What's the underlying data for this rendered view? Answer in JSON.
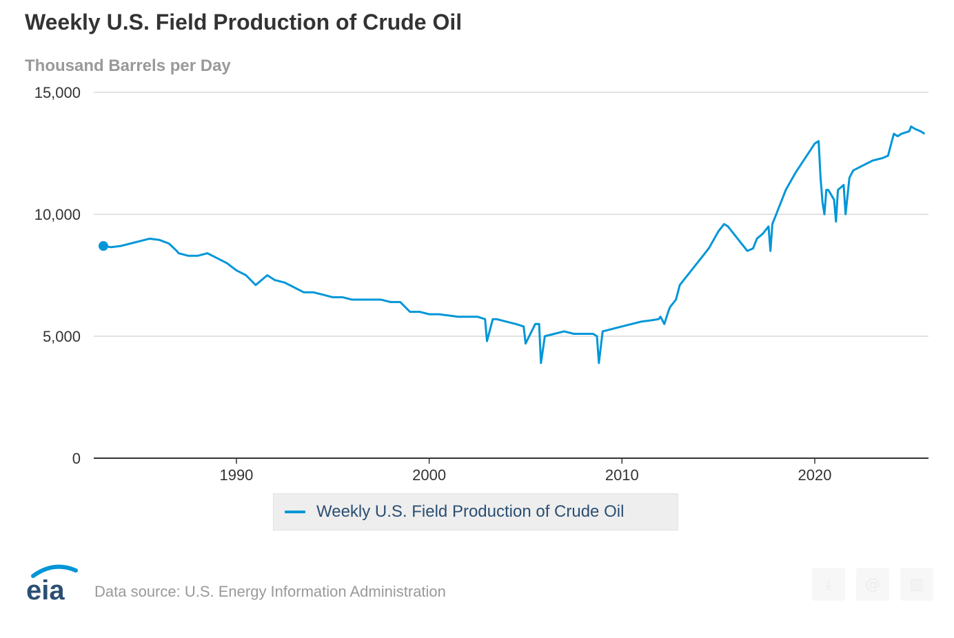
{
  "header": {
    "title": "Weekly U.S. Field Production of Crude Oil",
    "subtitle": "Thousand Barrels per Day"
  },
  "legend": {
    "label": "Weekly U.S. Field Production of Crude Oil"
  },
  "footer": {
    "logo_text": "eia",
    "source": "Data source: U.S. Energy Information Administration"
  },
  "toolbar": {
    "icons": [
      "download-icon",
      "share-icon",
      "embed-icon"
    ]
  },
  "colors": {
    "series": "#0096d7",
    "grid": "#d8d8d8",
    "axis": "#333333",
    "title": "#333333",
    "muted": "#999999"
  },
  "chart_data": {
    "type": "line",
    "title": "Weekly U.S. Field Production of Crude Oil",
    "ylabel": "Thousand Barrels per Day",
    "xlabel": "",
    "ylim": [
      0,
      15000
    ],
    "xlim": [
      1982.6,
      2025.9
    ],
    "y_ticks": [
      0,
      5000,
      10000,
      15000
    ],
    "y_tick_labels": [
      "0",
      "5,000",
      "10,000",
      "15,000"
    ],
    "x_ticks": [
      1990,
      2000,
      2010,
      2020
    ],
    "x_tick_labels": [
      "1990",
      "2000",
      "2010",
      "2020"
    ],
    "grid": true,
    "legend_position": "bottom-center",
    "series": [
      {
        "name": "Weekly U.S. Field Production of Crude Oil",
        "x": [
          1983.1,
          1983.5,
          1984.0,
          1984.5,
          1985.0,
          1985.5,
          1986.0,
          1986.5,
          1986.9,
          1987.0,
          1987.5,
          1988.0,
          1988.5,
          1989.0,
          1989.5,
          1990.0,
          1990.5,
          1991.0,
          1991.3,
          1991.6,
          1992.0,
          1992.5,
          1993.0,
          1993.5,
          1994.0,
          1994.5,
          1995.0,
          1995.5,
          1996.0,
          1996.5,
          1997.0,
          1997.5,
          1998.0,
          1998.5,
          1999.0,
          1999.5,
          2000.0,
          2000.5,
          2001.0,
          2001.5,
          2002.0,
          2002.5,
          2002.9,
          2003.0,
          2003.3,
          2003.5,
          2004.0,
          2004.5,
          2004.9,
          2005.0,
          2005.5,
          2005.7,
          2005.8,
          2006.0,
          2006.5,
          2007.0,
          2007.5,
          2008.0,
          2008.5,
          2008.7,
          2008.8,
          2009.0,
          2009.5,
          2010.0,
          2010.5,
          2011.0,
          2011.5,
          2011.9,
          2012.0,
          2012.2,
          2012.4,
          2012.5,
          2012.8,
          2013.0,
          2013.5,
          2014.0,
          2014.5,
          2015.0,
          2015.3,
          2015.5,
          2016.0,
          2016.5,
          2016.8,
          2017.0,
          2017.3,
          2017.6,
          2017.7,
          2017.8,
          2018.0,
          2018.5,
          2019.0,
          2019.5,
          2020.0,
          2020.2,
          2020.3,
          2020.4,
          2020.5,
          2020.6,
          2020.7,
          2021.0,
          2021.1,
          2021.2,
          2021.5,
          2021.6,
          2021.8,
          2022.0,
          2022.5,
          2023.0,
          2023.5,
          2023.8,
          2024.0,
          2024.1,
          2024.3,
          2024.5,
          2024.9,
          2025.0,
          2025.2,
          2025.5,
          2025.7
        ],
        "values": [
          8700,
          8650,
          8700,
          8800,
          8900,
          9000,
          8950,
          8800,
          8500,
          8400,
          8300,
          8300,
          8400,
          8200,
          8000,
          7700,
          7500,
          7100,
          7300,
          7500,
          7300,
          7200,
          7000,
          6800,
          6800,
          6700,
          6600,
          6600,
          6500,
          6500,
          6500,
          6500,
          6400,
          6400,
          6000,
          6000,
          5900,
          5900,
          5850,
          5800,
          5800,
          5800,
          5700,
          4800,
          5700,
          5700,
          5600,
          5500,
          5400,
          4700,
          5500,
          5500,
          3900,
          5000,
          5100,
          5200,
          5100,
          5100,
          5100,
          5000,
          3900,
          5200,
          5300,
          5400,
          5500,
          5600,
          5650,
          5700,
          5800,
          5500,
          6000,
          6200,
          6500,
          7100,
          7600,
          8100,
          8600,
          9300,
          9600,
          9500,
          9000,
          8500,
          8600,
          9000,
          9200,
          9500,
          8500,
          9600,
          10000,
          11000,
          11700,
          12300,
          12900,
          13000,
          11500,
          10500,
          10000,
          11000,
          11000,
          10600,
          9700,
          11000,
          11200,
          10000,
          11500,
          11800,
          12000,
          12200,
          12300,
          12400,
          13000,
          13300,
          13200,
          13300,
          13400,
          13600,
          13500,
          13400,
          13300
        ]
      }
    ]
  }
}
